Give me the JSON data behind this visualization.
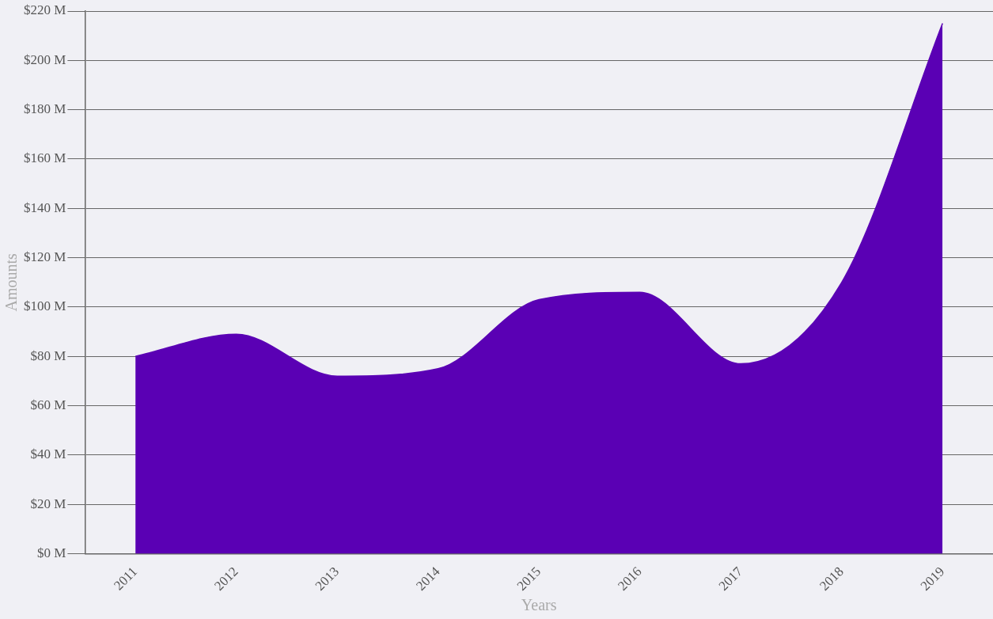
{
  "chart_data": {
    "type": "area",
    "xlabel": "Years",
    "ylabel": "Amounts",
    "categories": [
      "2011",
      "2012",
      "2013",
      "2014",
      "2015",
      "2016",
      "2017",
      "2018",
      "2019"
    ],
    "series": [
      {
        "color": "#5a00b4",
        "values": [
          80,
          89,
          72,
          75,
          103,
          106,
          77,
          110,
          215
        ]
      }
    ],
    "ylim": [
      0,
      220
    ],
    "yticks": [
      {
        "value": 0,
        "label": "$0 M"
      },
      {
        "value": 20,
        "label": "$20 M"
      },
      {
        "value": 40,
        "label": "$40 M"
      },
      {
        "value": 60,
        "label": "$60 M"
      },
      {
        "value": 80,
        "label": "$80 M"
      },
      {
        "value": 100,
        "label": "$100 M"
      },
      {
        "value": 120,
        "label": "$120 M"
      },
      {
        "value": 140,
        "label": "$140 M"
      },
      {
        "value": 160,
        "label": "$160 M"
      },
      {
        "value": 180,
        "label": "$180 M"
      },
      {
        "value": 200,
        "label": "$200 M"
      },
      {
        "value": 220,
        "label": "$220 M"
      }
    ],
    "grid": "y",
    "legend": false
  }
}
